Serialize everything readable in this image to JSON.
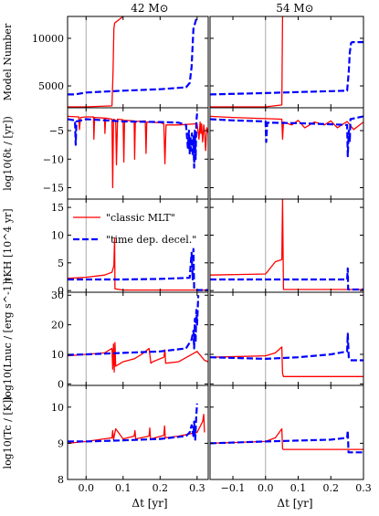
{
  "figure": {
    "column_titles": [
      "42 M⊙",
      "54 M⊙"
    ],
    "xlabel": "Δt [yr]"
  },
  "legend": [
    {
      "label": "\"classic MLT\"",
      "color": "#ff0000",
      "style": "solid"
    },
    {
      "label": "\"time dep. decel.\"",
      "color": "#0000ff",
      "style": "dashed"
    }
  ],
  "colors": {
    "classic": "#ff0000",
    "timedep": "#0000ff",
    "zero_line": "#aaaaaa"
  },
  "chart_data": [
    {
      "type": "line",
      "panel": "model-number-42",
      "ylabel": "Model Number",
      "xlim": [
        -0.05,
        0.33
      ],
      "ylim": [
        2700,
        12300
      ],
      "xticks": [
        0.0,
        0.1,
        0.2,
        0.3
      ],
      "yticks": [
        5000,
        10000
      ],
      "series": [
        {
          "name": "\"classic MLT\"",
          "x": [
            -0.05,
            0.0,
            0.07,
            0.073,
            0.075,
            0.077,
            0.08,
            0.1
          ],
          "y": [
            2800,
            2800,
            2900,
            6500,
            11000,
            11600,
            11700,
            12300
          ]
        },
        {
          "name": "\"time dep. decel.\"",
          "x": [
            -0.05,
            -0.03,
            0.0,
            0.1,
            0.2,
            0.27,
            0.28,
            0.285,
            0.29,
            0.3
          ],
          "y": [
            4100,
            4100,
            4300,
            4500,
            4650,
            4850,
            5300,
            7000,
            11000,
            12300
          ]
        }
      ]
    },
    {
      "type": "line",
      "panel": "model-number-54",
      "ylabel": "",
      "xlim": [
        -0.17,
        0.3
      ],
      "ylim": [
        2700,
        12300
      ],
      "xticks": [
        -0.1,
        0.0,
        0.1,
        0.2,
        0.3
      ],
      "yticks": [
        5000,
        10000
      ],
      "series": [
        {
          "name": "\"classic MLT\"",
          "x": [
            -0.17,
            0.0,
            0.05,
            0.052,
            0.055
          ],
          "y": [
            2800,
            2800,
            3000,
            12300,
            12300
          ]
        },
        {
          "name": "\"time dep. decel.\"",
          "x": [
            -0.17,
            0.0,
            0.1,
            0.2,
            0.25,
            0.255,
            0.258,
            0.262,
            0.265,
            0.3
          ],
          "y": [
            4100,
            4250,
            4350,
            4450,
            4500,
            6500,
            8500,
            9500,
            9600,
            9600
          ]
        }
      ]
    },
    {
      "type": "line",
      "panel": "timestep-42",
      "ylabel": "log10(δt / [yr])",
      "xlim": [
        -0.05,
        0.33
      ],
      "ylim": [
        -17,
        -1
      ],
      "xticks": [
        0.0,
        0.1,
        0.2,
        0.3
      ],
      "yticks": [
        -15,
        -10,
        -5
      ],
      "series": [
        {
          "name": "\"classic MLT\"",
          "x": [
            -0.05,
            -0.02,
            -0.018,
            -0.015,
            0.0,
            0.02,
            0.021,
            0.023,
            0.05,
            0.051,
            0.053,
            0.07,
            0.072,
            0.074,
            0.08,
            0.082,
            0.085,
            0.1,
            0.102,
            0.104,
            0.13,
            0.131,
            0.133,
            0.16,
            0.162,
            0.164,
            0.2,
            0.21,
            0.213,
            0.216,
            0.25,
            0.3,
            0.305,
            0.308,
            0.31,
            0.312,
            0.315,
            0.318,
            0.32,
            0.323,
            0.326,
            0.33
          ],
          "y": [
            -2.5,
            -2.6,
            -4.8,
            -2.7,
            -2.6,
            -2.6,
            -6.5,
            -2.7,
            -2.8,
            -5.5,
            -2.8,
            -3.0,
            -15.0,
            -3.0,
            -3.2,
            -11.0,
            -3.0,
            -3.1,
            -10.5,
            -3.2,
            -3.3,
            -10.0,
            -3.4,
            -3.3,
            -9.0,
            -3.5,
            -3.6,
            -3.8,
            -10.8,
            -4.0,
            -4.0,
            -3.8,
            -6.5,
            -3.5,
            -5.5,
            -3.8,
            -7.0,
            -4.0,
            -5.0,
            -8.5,
            -4.5,
            -5.5
          ]
        },
        {
          "name": "\"time dep. decel.\"",
          "x": [
            -0.05,
            -0.03,
            -0.028,
            -0.026,
            0.0,
            0.1,
            0.2,
            0.25,
            0.27,
            0.275,
            0.278,
            0.28,
            0.282,
            0.284,
            0.286,
            0.288,
            0.29,
            0.292,
            0.294,
            0.296,
            0.298,
            0.3
          ],
          "y": [
            -3.0,
            -3.2,
            -7.5,
            -3.4,
            -3.0,
            -3.4,
            -3.5,
            -3.6,
            -4.0,
            -8.0,
            -5.0,
            -9.0,
            -6.0,
            -8.5,
            -5.5,
            -9.5,
            -6.0,
            -11.5,
            -5.0,
            -10.0,
            -3.5,
            -2.0
          ]
        }
      ]
    },
    {
      "type": "line",
      "panel": "timestep-54",
      "ylabel": "",
      "xlim": [
        -0.17,
        0.3
      ],
      "ylim": [
        -17,
        -1
      ],
      "xticks": [
        -0.1,
        0.0,
        0.1,
        0.2,
        0.3
      ],
      "yticks": [
        -15,
        -10,
        -5
      ],
      "series": [
        {
          "name": "\"classic MLT\"",
          "x": [
            -0.17,
            -0.1,
            0.0,
            0.05,
            0.052,
            0.055,
            0.08,
            0.1,
            0.12,
            0.15,
            0.18,
            0.2,
            0.22,
            0.25,
            0.27,
            0.3
          ],
          "y": [
            -2.5,
            -2.7,
            -2.9,
            -3.0,
            -6.5,
            -3.5,
            -4.0,
            -3.2,
            -4.5,
            -3.5,
            -4.0,
            -3.3,
            -4.5,
            -3.4,
            -4.8,
            -3.5
          ]
        },
        {
          "name": "\"time dep. decel.\"",
          "x": [
            -0.17,
            -0.1,
            0.0,
            0.002,
            0.005,
            0.1,
            0.2,
            0.25,
            0.252,
            0.255,
            0.258,
            0.26,
            0.3
          ],
          "y": [
            -3.0,
            -3.2,
            -3.4,
            -7.0,
            -3.6,
            -3.7,
            -3.9,
            -4.0,
            -9.5,
            -5.0,
            -7.0,
            -3.0,
            -2.5
          ]
        }
      ]
    },
    {
      "type": "line",
      "panel": "tau-kh-42",
      "ylabel": "τKH [10^4 yr]",
      "xlim": [
        -0.05,
        0.33
      ],
      "ylim": [
        -0.3,
        16.5
      ],
      "xticks": [
        0.0,
        0.1,
        0.2,
        0.3
      ],
      "yticks": [
        0,
        5,
        10,
        15
      ],
      "series": [
        {
          "name": "\"classic MLT\"",
          "x": [
            -0.05,
            0.0,
            0.05,
            0.07,
            0.075,
            0.077,
            0.078,
            0.08,
            0.1,
            0.33
          ],
          "y": [
            2.2,
            2.4,
            2.8,
            3.3,
            4.5,
            9.5,
            0.3,
            0.3,
            0.1,
            0.1
          ]
        },
        {
          "name": "\"time dep. decel.\"",
          "x": [
            -0.05,
            0.0,
            0.1,
            0.2,
            0.28,
            0.285,
            0.288,
            0.29,
            0.292,
            0.295,
            0.3,
            0.33
          ],
          "y": [
            2.0,
            2.0,
            2.0,
            2.1,
            2.3,
            6.8,
            2.0,
            7.5,
            0.3,
            0.2,
            0.1,
            0.1
          ]
        }
      ]
    },
    {
      "type": "line",
      "panel": "tau-kh-54",
      "ylabel": "",
      "xlim": [
        -0.17,
        0.3
      ],
      "ylim": [
        -0.3,
        16.5
      ],
      "xticks": [
        -0.1,
        0.0,
        0.1,
        0.2,
        0.3
      ],
      "yticks": [
        0,
        5,
        10,
        15
      ],
      "series": [
        {
          "name": "\"classic MLT\"",
          "x": [
            -0.17,
            0.0,
            0.03,
            0.05,
            0.052,
            0.055,
            0.3
          ],
          "y": [
            2.8,
            3.0,
            5.2,
            5.6,
            16.5,
            0.2,
            0.2
          ]
        },
        {
          "name": "\"time dep. decel.\"",
          "x": [
            -0.17,
            0.0,
            0.2,
            0.25,
            0.252,
            0.253,
            0.255,
            0.3
          ],
          "y": [
            2.0,
            2.0,
            2.0,
            2.0,
            4.0,
            0.2,
            0.2,
            0.2
          ]
        }
      ]
    },
    {
      "type": "line",
      "panel": "lnuc-42",
      "ylabel": "log10(Lnuc / [erg s^-1])",
      "xlim": [
        -0.05,
        0.33
      ],
      "ylim": [
        -0.5,
        31
      ],
      "xticks": [
        0.0,
        0.1,
        0.2,
        0.3
      ],
      "yticks": [
        0,
        10,
        20,
        30
      ],
      "series": [
        {
          "name": "\"classic MLT\"",
          "x": [
            -0.05,
            0.0,
            0.05,
            0.07,
            0.072,
            0.074,
            0.076,
            0.078,
            0.08,
            0.1,
            0.13,
            0.15,
            0.17,
            0.175,
            0.18,
            0.21,
            0.213,
            0.215,
            0.25,
            0.3,
            0.32,
            0.33
          ],
          "y": [
            9.5,
            10.0,
            10.5,
            12.0,
            5.0,
            13.5,
            4.0,
            14.0,
            6.0,
            7.5,
            8.5,
            10.0,
            12.0,
            7.0,
            7.5,
            9.0,
            11.5,
            7.0,
            7.5,
            11.0,
            8.0,
            7.5
          ]
        },
        {
          "name": "\"time dep. decel.\"",
          "x": [
            -0.05,
            0.0,
            0.1,
            0.2,
            0.27,
            0.285,
            0.29,
            0.292,
            0.294,
            0.296,
            0.298,
            0.3,
            0.303
          ],
          "y": [
            9.8,
            10.0,
            10.5,
            11.0,
            12.0,
            15.0,
            18.0,
            12.0,
            22.0,
            14.0,
            25.0,
            20.0,
            30.0
          ]
        }
      ]
    },
    {
      "type": "line",
      "panel": "lnuc-54",
      "ylabel": "",
      "xlim": [
        -0.17,
        0.3
      ],
      "ylim": [
        -0.5,
        31
      ],
      "xticks": [
        -0.1,
        0.0,
        0.1,
        0.2,
        0.3
      ],
      "yticks": [
        0,
        10,
        20,
        30
      ],
      "series": [
        {
          "name": "\"classic MLT\"",
          "x": [
            -0.17,
            0.0,
            0.03,
            0.05,
            0.052,
            0.055,
            0.3
          ],
          "y": [
            9.0,
            9.5,
            10.5,
            12.5,
            3.5,
            2.5,
            2.5
          ]
        },
        {
          "name": "\"time dep. decel.\"",
          "x": [
            -0.17,
            0.0,
            0.1,
            0.2,
            0.25,
            0.252,
            0.255,
            0.26,
            0.3
          ],
          "y": [
            9.0,
            8.5,
            9.0,
            10.0,
            11.0,
            17.0,
            9.0,
            8.0,
            8.0
          ]
        }
      ]
    },
    {
      "type": "line",
      "panel": "tc-42",
      "ylabel": "log10(Tc / [K])",
      "xlim": [
        -0.05,
        0.33
      ],
      "ylim": [
        8.0,
        10.6
      ],
      "xticks": [
        0.0,
        0.1,
        0.2,
        0.3
      ],
      "yticks": [
        8,
        9,
        10
      ],
      "series": [
        {
          "name": "\"classic MLT\"",
          "x": [
            -0.05,
            0.0,
            0.07,
            0.072,
            0.074,
            0.08,
            0.1,
            0.13,
            0.132,
            0.134,
            0.17,
            0.172,
            0.174,
            0.21,
            0.212,
            0.214,
            0.25,
            0.3,
            0.315,
            0.318,
            0.32
          ],
          "y": [
            9.0,
            9.05,
            9.15,
            9.35,
            9.1,
            9.4,
            9.12,
            9.2,
            9.35,
            9.12,
            9.2,
            9.42,
            9.12,
            9.22,
            9.48,
            9.15,
            9.2,
            9.3,
            9.6,
            9.8,
            9.3
          ]
        },
        {
          "name": "\"time dep. decel.\"",
          "x": [
            -0.05,
            0.0,
            0.1,
            0.2,
            0.27,
            0.28,
            0.285,
            0.29,
            0.292,
            0.295,
            0.298,
            0.3
          ],
          "y": [
            9.05,
            9.05,
            9.08,
            9.12,
            9.2,
            9.3,
            9.5,
            9.2,
            9.6,
            9.1,
            9.8,
            10.1
          ]
        }
      ]
    },
    {
      "type": "line",
      "panel": "tc-54",
      "ylabel": "",
      "xlim": [
        -0.17,
        0.3
      ],
      "ylim": [
        8.0,
        10.6
      ],
      "xticks": [
        -0.1,
        0.0,
        0.1,
        0.2,
        0.3
      ],
      "yticks": [
        8,
        9,
        10
      ],
      "series": [
        {
          "name": "\"classic MLT\"",
          "x": [
            -0.17,
            0.0,
            0.03,
            0.05,
            0.052,
            0.054,
            0.3
          ],
          "y": [
            9.0,
            9.05,
            9.15,
            9.4,
            8.85,
            8.83,
            8.83
          ]
        },
        {
          "name": "\"time dep. decel.\"",
          "x": [
            -0.17,
            0.0,
            0.2,
            0.25,
            0.252,
            0.254,
            0.26,
            0.28,
            0.3
          ],
          "y": [
            9.0,
            9.05,
            9.1,
            9.15,
            9.35,
            8.75,
            8.75,
            8.75,
            8.75
          ]
        }
      ]
    }
  ]
}
